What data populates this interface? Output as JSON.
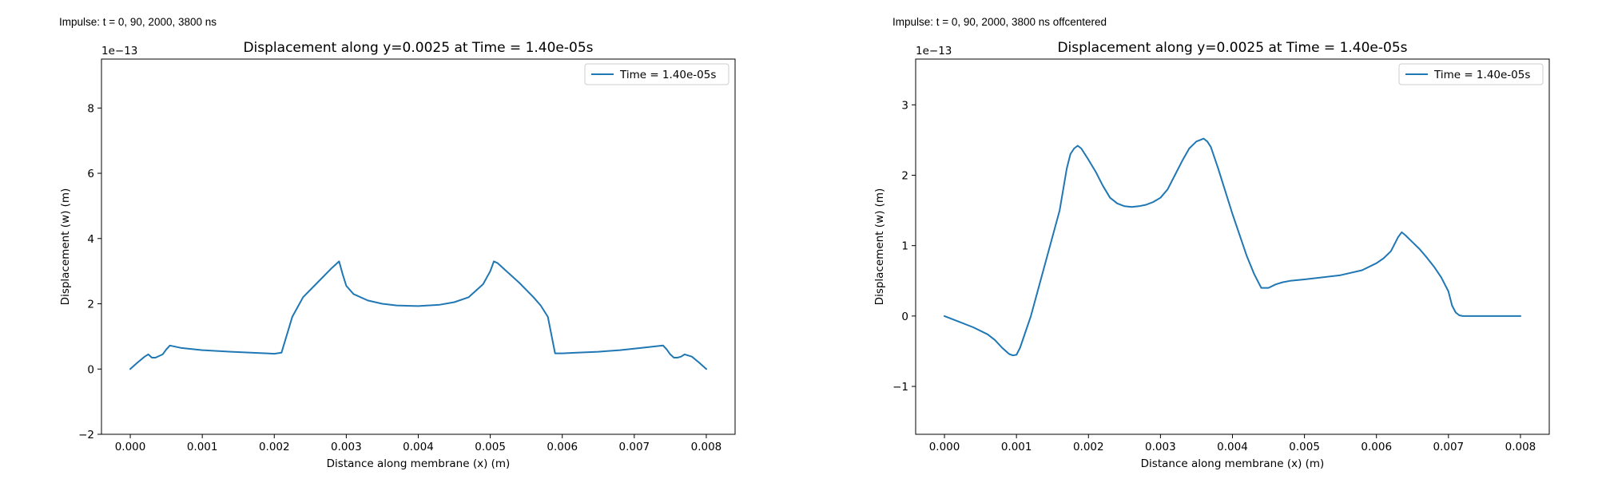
{
  "panels": [
    {
      "impulse_label": "Impulse: t = 0, 90, 2000, 3800 ns"
    },
    {
      "impulse_label": "Impulse: t = 0, 90, 2000, 3800 ns offcentered"
    }
  ],
  "colors": {
    "line": "#1f77b4",
    "axes": "#000000",
    "legend_border": "#cccccc"
  },
  "chart_data": [
    {
      "type": "line",
      "title": "Displacement along y=0.0025 at Time = 1.40e-05s",
      "xlabel": "Distance along membrane (x) (m)",
      "ylabel": "Displacement (w) (m)",
      "y_multiplier": "1e−13",
      "xlim": [
        -0.0004,
        0.0084
      ],
      "ylim": [
        -2,
        9.5
      ],
      "xticks": [
        0.0,
        0.001,
        0.002,
        0.003,
        0.004,
        0.005,
        0.006,
        0.007,
        0.008
      ],
      "xtick_labels": [
        "0.000",
        "0.001",
        "0.002",
        "0.003",
        "0.004",
        "0.005",
        "0.006",
        "0.007",
        "0.008"
      ],
      "yticks": [
        -2,
        0,
        2,
        4,
        6,
        8
      ],
      "ytick_labels": [
        "−2",
        "0",
        "2",
        "4",
        "6",
        "8"
      ],
      "grid": false,
      "legend_placement": "upper right",
      "series": [
        {
          "name": "Time = 1.40e-05s",
          "x": [
            0,
            0.0001,
            0.0002,
            0.00025,
            0.0003,
            0.00035,
            0.00045,
            0.0005,
            0.00055,
            0.0007,
            0.001,
            0.0014,
            0.0018,
            0.0019,
            0.002,
            0.0021,
            0.00225,
            0.0024,
            0.0026,
            0.0028,
            0.0029,
            0.00295,
            0.003,
            0.0031,
            0.0033,
            0.0035,
            0.0037,
            0.004,
            0.0043,
            0.0045,
            0.0047,
            0.0049,
            0.005,
            0.00505,
            0.0051,
            0.0052,
            0.0054,
            0.0056,
            0.0057,
            0.0058,
            0.0059,
            0.006,
            0.0062,
            0.0065,
            0.0068,
            0.0071,
            0.0073,
            0.0074,
            0.00745,
            0.0075,
            0.00755,
            0.0076,
            0.00765,
            0.0077,
            0.0078,
            0.0079,
            0.008
          ],
          "y": [
            0.0,
            0.2,
            0.38,
            0.45,
            0.35,
            0.35,
            0.45,
            0.6,
            0.72,
            0.65,
            0.58,
            0.53,
            0.49,
            0.48,
            0.47,
            0.5,
            1.6,
            2.2,
            2.65,
            3.1,
            3.3,
            2.9,
            2.55,
            2.3,
            2.1,
            2.0,
            1.95,
            1.93,
            1.97,
            2.05,
            2.2,
            2.6,
            3.0,
            3.3,
            3.25,
            3.05,
            2.65,
            2.2,
            1.95,
            1.6,
            0.48,
            0.48,
            0.5,
            0.53,
            0.58,
            0.65,
            0.7,
            0.72,
            0.6,
            0.45,
            0.35,
            0.35,
            0.38,
            0.45,
            0.38,
            0.2,
            0.0
          ]
        }
      ]
    },
    {
      "type": "line",
      "title": "Displacement along y=0.0025 at Time = 1.40e-05s",
      "xlabel": "Distance along membrane (x) (m)",
      "ylabel": "Displacement (w) (m)",
      "y_multiplier": "1e−13",
      "xlim": [
        -0.0004,
        0.0084
      ],
      "ylim": [
        -1.68,
        3.65
      ],
      "xticks": [
        0.0,
        0.001,
        0.002,
        0.003,
        0.004,
        0.005,
        0.006,
        0.007,
        0.008
      ],
      "xtick_labels": [
        "0.000",
        "0.001",
        "0.002",
        "0.003",
        "0.004",
        "0.005",
        "0.006",
        "0.007",
        "0.008"
      ],
      "yticks": [
        -1,
        0,
        1,
        2,
        3
      ],
      "ytick_labels": [
        "−1",
        "0",
        "1",
        "2",
        "3"
      ],
      "grid": false,
      "legend_placement": "upper right",
      "series": [
        {
          "name": "Time = 1.40e-05s",
          "x": [
            0,
            0.0002,
            0.0004,
            0.0006,
            0.0007,
            0.0008,
            0.0009,
            0.00095,
            0.001,
            0.00105,
            0.0012,
            0.0014,
            0.0016,
            0.0017,
            0.00175,
            0.0018,
            0.00185,
            0.0019,
            0.002,
            0.0021,
            0.0022,
            0.0023,
            0.0024,
            0.0025,
            0.0026,
            0.0027,
            0.0028,
            0.0029,
            0.003,
            0.0031,
            0.0032,
            0.0033,
            0.0034,
            0.0035,
            0.00355,
            0.0036,
            0.00365,
            0.0037,
            0.0038,
            0.004,
            0.0042,
            0.0043,
            0.0044,
            0.0045,
            0.0046,
            0.0047,
            0.0048,
            0.005,
            0.0055,
            0.0058,
            0.006,
            0.0061,
            0.0062,
            0.0063,
            0.00635,
            0.0064,
            0.0065,
            0.0066,
            0.0067,
            0.0068,
            0.0069,
            0.007,
            0.00705,
            0.0071,
            0.00715,
            0.0072,
            0.0073,
            0.0075,
            0.0078,
            0.008
          ],
          "y": [
            0.0,
            -0.08,
            -0.16,
            -0.26,
            -0.34,
            -0.45,
            -0.54,
            -0.56,
            -0.55,
            -0.45,
            0.0,
            0.75,
            1.5,
            2.1,
            2.3,
            2.38,
            2.42,
            2.38,
            2.22,
            2.05,
            1.85,
            1.68,
            1.6,
            1.56,
            1.55,
            1.56,
            1.58,
            1.62,
            1.68,
            1.8,
            2.0,
            2.2,
            2.38,
            2.48,
            2.5,
            2.52,
            2.48,
            2.4,
            2.1,
            1.45,
            0.85,
            0.6,
            0.4,
            0.4,
            0.45,
            0.48,
            0.5,
            0.52,
            0.58,
            0.65,
            0.75,
            0.82,
            0.92,
            1.12,
            1.19,
            1.15,
            1.05,
            0.95,
            0.83,
            0.7,
            0.55,
            0.35,
            0.15,
            0.05,
            0.01,
            0.0,
            0.0,
            0.0,
            0.0,
            0.0
          ]
        }
      ]
    }
  ]
}
